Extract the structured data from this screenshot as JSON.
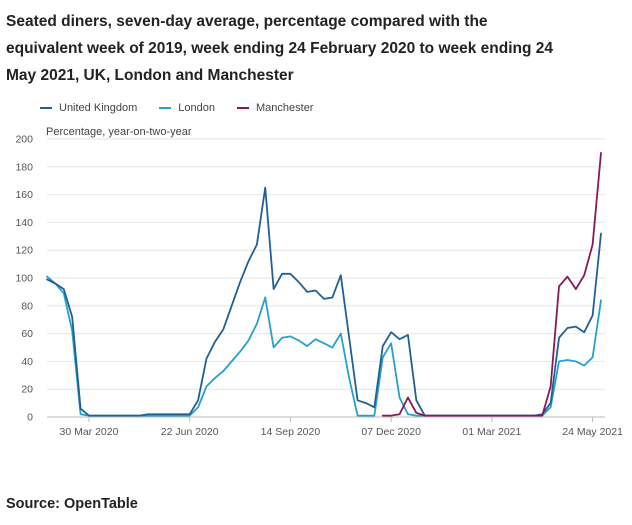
{
  "chart_data": {
    "type": "line",
    "title": "Seated diners, seven-day average, percentage compared with the equivalent week of 2019, week ending 24 February 2020 to week ending 24 May 2021, UK, London and Manchester",
    "ylabel": "Percentage, year-on-two-year",
    "xlabel": "",
    "ylim": [
      0,
      200
    ],
    "yticks": [
      0,
      20,
      40,
      60,
      80,
      100,
      120,
      140,
      160,
      180,
      200
    ],
    "xticks": [
      {
        "index": 5,
        "label": "30 Mar 2020"
      },
      {
        "index": 17,
        "label": "22 Jun 2020"
      },
      {
        "index": 29,
        "label": "14 Sep 2020"
      },
      {
        "index": 41,
        "label": "07 Dec 2020"
      },
      {
        "index": 53,
        "label": "01 Mar 2021"
      },
      {
        "index": 65,
        "label": "24 May 2021"
      }
    ],
    "series": [
      {
        "name": "United Kingdom",
        "color": "#206095",
        "values": [
          99,
          96,
          92,
          72,
          6,
          1,
          1,
          1,
          1,
          1,
          1,
          1,
          2,
          2,
          2,
          2,
          2,
          2,
          12,
          42,
          54,
          63,
          80,
          97,
          112,
          124,
          165,
          92,
          103,
          103,
          97,
          90,
          91,
          85,
          86,
          102,
          57,
          12,
          10,
          7,
          51,
          61,
          56,
          59,
          12,
          1,
          1,
          1,
          1,
          1,
          1,
          1,
          1,
          1,
          1,
          1,
          1,
          1,
          1,
          2,
          10,
          57,
          64,
          65,
          61,
          73,
          132
        ]
      },
      {
        "name": "London",
        "color": "#27a0cc",
        "values": [
          101,
          96,
          89,
          62,
          2,
          1,
          1,
          1,
          1,
          1,
          1,
          1,
          1,
          1,
          1,
          1,
          1,
          1,
          7,
          22,
          28,
          33,
          40,
          47,
          55,
          67,
          86,
          50,
          57,
          58,
          55,
          51,
          56,
          53,
          50,
          60,
          28,
          1,
          1,
          1,
          43,
          53,
          14,
          2,
          1,
          1,
          1,
          1,
          1,
          1,
          1,
          1,
          1,
          1,
          1,
          1,
          1,
          1,
          1,
          1,
          7,
          40,
          41,
          40,
          37,
          43,
          84
        ]
      },
      {
        "name": "Manchester",
        "color": "#871a5b",
        "values": [
          null,
          null,
          null,
          null,
          null,
          null,
          null,
          null,
          null,
          null,
          null,
          null,
          null,
          null,
          null,
          null,
          null,
          null,
          null,
          null,
          null,
          null,
          null,
          null,
          null,
          null,
          null,
          null,
          null,
          null,
          null,
          null,
          null,
          null,
          null,
          null,
          null,
          null,
          null,
          null,
          1,
          1,
          2,
          14,
          3,
          1,
          1,
          1,
          1,
          1,
          1,
          1,
          1,
          1,
          1,
          1,
          1,
          1,
          1,
          1,
          22,
          94,
          101,
          92,
          102,
          124,
          190
        ]
      }
    ]
  },
  "source": "Source: OpenTable"
}
